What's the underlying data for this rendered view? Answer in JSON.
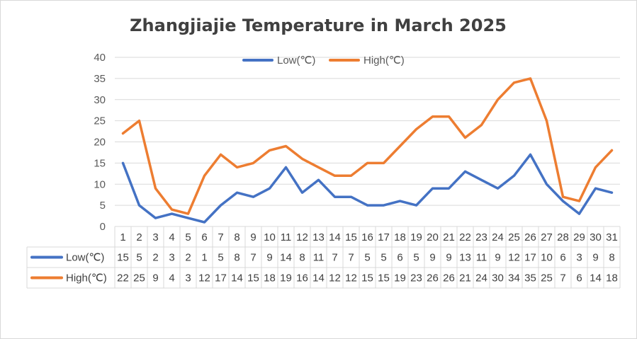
{
  "chart_data": {
    "type": "line",
    "title": "Zhangjiajie Temperature in March 2025",
    "categories": [
      "1",
      "2",
      "3",
      "4",
      "5",
      "6",
      "7",
      "8",
      "9",
      "10",
      "11",
      "12",
      "13",
      "14",
      "15",
      "16",
      "17",
      "18",
      "19",
      "20",
      "21",
      "22",
      "23",
      "24",
      "25",
      "26",
      "27",
      "28",
      "29",
      "30",
      "31"
    ],
    "series": [
      {
        "name": "Low(℃)",
        "color": "#4472c4",
        "values": [
          15,
          5,
          2,
          3,
          2,
          1,
          5,
          8,
          7,
          9,
          14,
          8,
          11,
          7,
          7,
          5,
          5,
          6,
          5,
          9,
          9,
          13,
          11,
          9,
          12,
          17,
          10,
          6,
          3,
          9,
          8
        ]
      },
      {
        "name": "High(℃)",
        "color": "#ed7d31",
        "values": [
          22,
          25,
          9,
          4,
          3,
          12,
          17,
          14,
          15,
          18,
          19,
          16,
          14,
          12,
          12,
          15,
          15,
          19,
          23,
          26,
          26,
          21,
          24,
          30,
          34,
          35,
          25,
          7,
          6,
          14,
          18
        ]
      }
    ],
    "ylim": [
      0,
      40
    ],
    "yticks": [
      0,
      5,
      10,
      15,
      20,
      25,
      30,
      35,
      40
    ],
    "grid": true,
    "legend_position": "top",
    "data_table": true
  }
}
